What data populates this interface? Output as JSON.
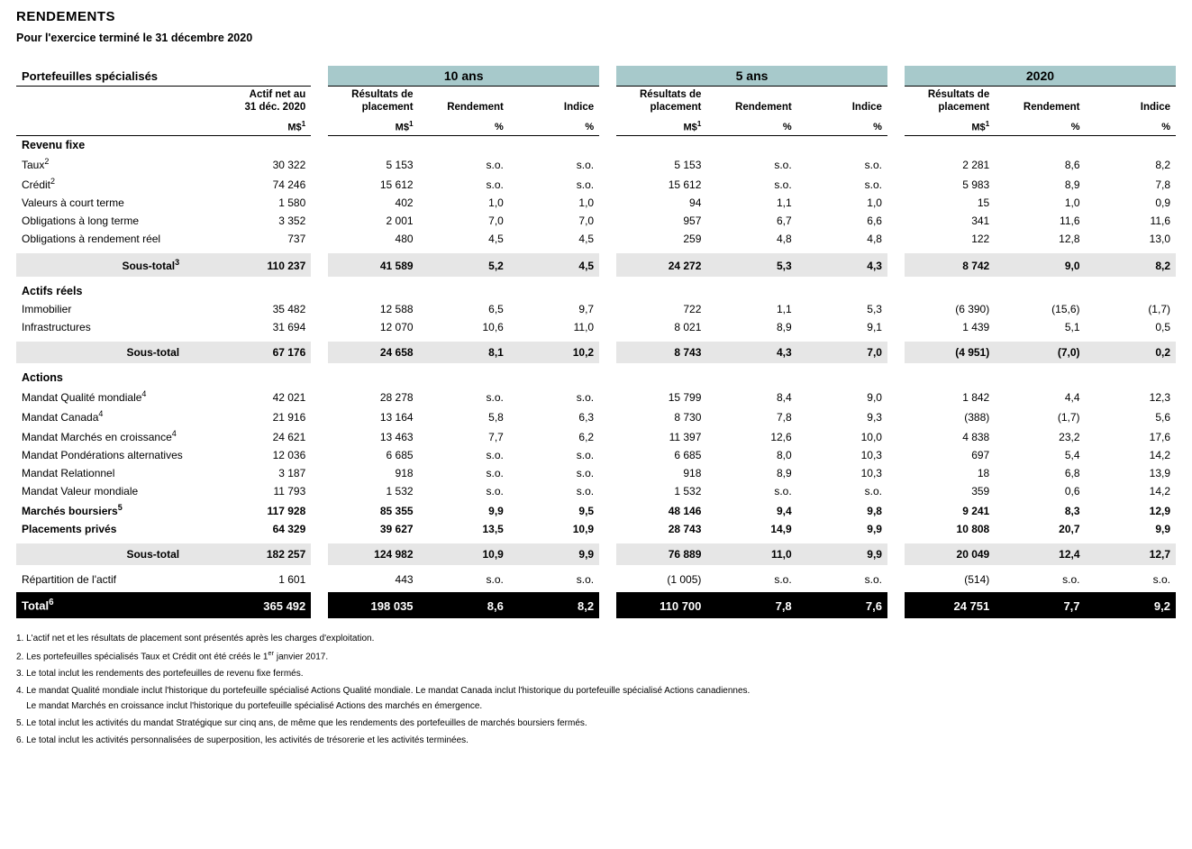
{
  "title": "RENDEMENTS",
  "subtitle": "Pour l'exercice terminé le 31 décembre 2020",
  "table": {
    "section_label": "Portefeuilles spécialisés",
    "actif_net_label": "Actif net au<br>31 déc. 2020",
    "periods": [
      "10 ans",
      "5 ans",
      "2020"
    ],
    "col_labels": {
      "resultats": "Résultats de<br>placement",
      "rendement": "Rendement",
      "indice": "Indice"
    },
    "units": {
      "ms": "M$",
      "pct": "%"
    },
    "sup": {
      "ms": "1"
    },
    "groups": [
      {
        "name": "Revenu fixe",
        "rows": [
          {
            "label": "Taux",
            "sup": "2",
            "actif": "30 322",
            "p": [
              [
                "5 153",
                "s.o.",
                "s.o."
              ],
              [
                "5 153",
                "s.o.",
                "s.o."
              ],
              [
                "2 281",
                "8,6",
                "8,2"
              ]
            ]
          },
          {
            "label": "Crédit",
            "sup": "2",
            "actif": "74 246",
            "p": [
              [
                "15 612",
                "s.o.",
                "s.o."
              ],
              [
                "15 612",
                "s.o.",
                "s.o."
              ],
              [
                "5 983",
                "8,9",
                "7,8"
              ]
            ]
          },
          {
            "label": "Valeurs à court terme",
            "actif": "1 580",
            "p": [
              [
                "402",
                "1,0",
                "1,0"
              ],
              [
                "94",
                "1,1",
                "1,0"
              ],
              [
                "15",
                "1,0",
                "0,9"
              ]
            ]
          },
          {
            "label": "Obligations à long terme",
            "actif": "3 352",
            "p": [
              [
                "2 001",
                "7,0",
                "7,0"
              ],
              [
                "957",
                "6,7",
                "6,6"
              ],
              [
                "341",
                "11,6",
                "11,6"
              ]
            ]
          },
          {
            "label": "Obligations à rendement réel",
            "actif": "737",
            "p": [
              [
                "480",
                "4,5",
                "4,5"
              ],
              [
                "259",
                "4,8",
                "4,8"
              ],
              [
                "122",
                "12,8",
                "13,0"
              ]
            ]
          }
        ],
        "subtotal": {
          "label": "Sous-total",
          "sup": "3",
          "actif": "110 237",
          "p": [
            [
              "41 589",
              "5,2",
              "4,5"
            ],
            [
              "24 272",
              "5,3",
              "4,3"
            ],
            [
              "8 742",
              "9,0",
              "8,2"
            ]
          ]
        }
      },
      {
        "name": "Actifs réels",
        "rows": [
          {
            "label": "Immobilier",
            "actif": "35 482",
            "p": [
              [
                "12 588",
                "6,5",
                "9,7"
              ],
              [
                "722",
                "1,1",
                "5,3"
              ],
              [
                "(6 390)",
                "(15,6)",
                "(1,7)"
              ]
            ]
          },
          {
            "label": "Infrastructures",
            "actif": "31 694",
            "p": [
              [
                "12 070",
                "10,6",
                "11,0"
              ],
              [
                "8 021",
                "8,9",
                "9,1"
              ],
              [
                "1 439",
                "5,1",
                "0,5"
              ]
            ]
          }
        ],
        "subtotal": {
          "label": "Sous-total",
          "actif": "67 176",
          "p": [
            [
              "24 658",
              "8,1",
              "10,2"
            ],
            [
              "8 743",
              "4,3",
              "7,0"
            ],
            [
              "(4 951)",
              "(7,0)",
              "0,2"
            ]
          ]
        }
      },
      {
        "name": "Actions",
        "rows": [
          {
            "label": "Mandat Qualité mondiale",
            "sup": "4",
            "actif": "42 021",
            "p": [
              [
                "28 278",
                "s.o.",
                "s.o."
              ],
              [
                "15 799",
                "8,4",
                "9,0"
              ],
              [
                "1 842",
                "4,4",
                "12,3"
              ]
            ]
          },
          {
            "label": "Mandat Canada",
            "sup": "4",
            "actif": "21 916",
            "p": [
              [
                "13 164",
                "5,8",
                "6,3"
              ],
              [
                "8 730",
                "7,8",
                "9,3"
              ],
              [
                "(388)",
                "(1,7)",
                "5,6"
              ]
            ]
          },
          {
            "label": "Mandat Marchés en croissance",
            "sup": "4",
            "actif": "24 621",
            "p": [
              [
                "13 463",
                "7,7",
                "6,2"
              ],
              [
                "11 397",
                "12,6",
                "10,0"
              ],
              [
                "4 838",
                "23,2",
                "17,6"
              ]
            ]
          },
          {
            "label": "Mandat Pondérations alternatives",
            "actif": "12 036",
            "p": [
              [
                "6 685",
                "s.o.",
                "s.o."
              ],
              [
                "6 685",
                "8,0",
                "10,3"
              ],
              [
                "697",
                "5,4",
                "14,2"
              ]
            ]
          },
          {
            "label": "Mandat Relationnel",
            "actif": "3 187",
            "p": [
              [
                "918",
                "s.o.",
                "s.o."
              ],
              [
                "918",
                "8,9",
                "10,3"
              ],
              [
                "18",
                "6,8",
                "13,9"
              ]
            ]
          },
          {
            "label": "Mandat Valeur mondiale",
            "actif": "11 793",
            "p": [
              [
                "1 532",
                "s.o.",
                "s.o."
              ],
              [
                "1 532",
                "s.o.",
                "s.o."
              ],
              [
                "359",
                "0,6",
                "14,2"
              ]
            ]
          },
          {
            "label": "Marchés boursiers",
            "sup": "5",
            "bold": true,
            "actif": "117 928",
            "p": [
              [
                "85 355",
                "9,9",
                "9,5"
              ],
              [
                "48 146",
                "9,4",
                "9,8"
              ],
              [
                "9 241",
                "8,3",
                "12,9"
              ]
            ]
          },
          {
            "label": "Placements privés",
            "bold": true,
            "actif": "64 329",
            "p": [
              [
                "39 627",
                "13,5",
                "10,9"
              ],
              [
                "28 743",
                "14,9",
                "9,9"
              ],
              [
                "10 808",
                "20,7",
                "9,9"
              ]
            ]
          }
        ],
        "subtotal": {
          "label": "Sous-total",
          "actif": "182 257",
          "p": [
            [
              "124 982",
              "10,9",
              "9,9"
            ],
            [
              "76 889",
              "11,0",
              "9,9"
            ],
            [
              "20 049",
              "12,4",
              "12,7"
            ]
          ]
        }
      }
    ],
    "extra_row": {
      "label": "Répartition de l'actif",
      "actif": "1 601",
      "p": [
        [
          "443",
          "s.o.",
          "s.o."
        ],
        [
          "(1 005)",
          "s.o.",
          "s.o."
        ],
        [
          "(514)",
          "s.o.",
          "s.o."
        ]
      ]
    },
    "total": {
      "label": "Total",
      "sup": "6",
      "actif": "365 492",
      "p": [
        [
          "198 035",
          "8,6",
          "8,2"
        ],
        [
          "110 700",
          "7,8",
          "7,6"
        ],
        [
          "24 751",
          "7,7",
          "9,2"
        ]
      ]
    }
  },
  "footnotes": [
    "1. L'actif net et les résultats de placement sont présentés après les charges d'exploitation.",
    "2. Les portefeuilles spécialisés Taux et Crédit ont été créés le 1<sup>er</sup> janvier 2017.",
    "3. Le total inclut les rendements des portefeuilles de revenu fixe fermés.",
    "4. Le mandat Qualité mondiale inclut l'historique du portefeuille spécialisé Actions Qualité mondiale. Le mandat Canada inclut l'historique du portefeuille spécialisé Actions canadiennes.<br>&nbsp;&nbsp;&nbsp;&nbsp;Le mandat Marchés en croissance inclut l'historique du portefeuille spécialisé Actions des marchés en émergence.",
    "5. Le total inclut les activités du mandat Stratégique sur cinq ans, de même que les rendements des portefeuilles de marchés boursiers fermés.",
    "6. Le total inclut les activités personnalisées de superposition, les activités de trésorerie et les activités terminées."
  ],
  "colors": {
    "period_header_bg": "#a7c9cb",
    "subtotal_bg": "#e6e6e6",
    "total_bg": "#000000",
    "total_fg": "#ffffff",
    "text": "#000000",
    "background": "#ffffff"
  },
  "fonts": {
    "family": "Arial",
    "title_size_pt": 15,
    "subtitle_size_pt": 12.5,
    "body_size_pt": 12,
    "footnote_size_pt": 10
  }
}
